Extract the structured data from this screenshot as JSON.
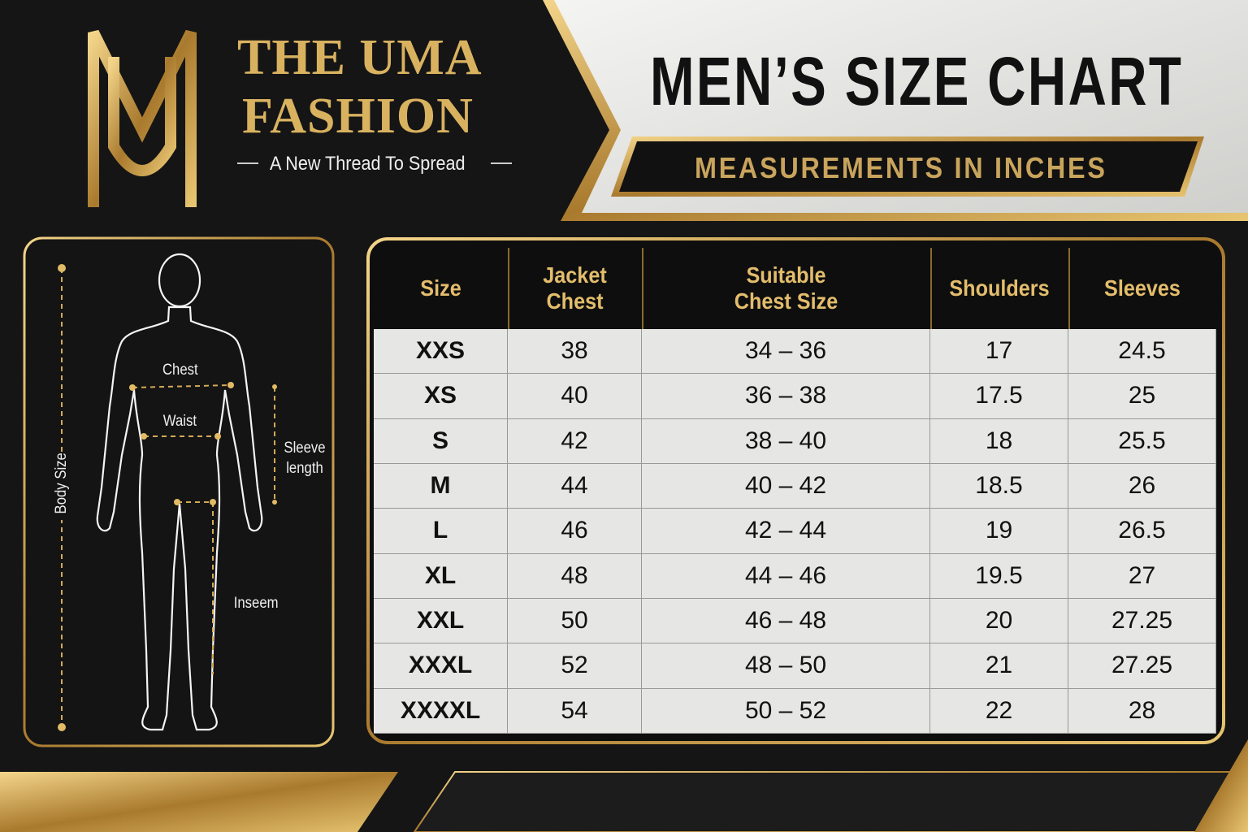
{
  "brand": {
    "name_lines": [
      "THE UMA",
      "FASHION"
    ],
    "tagline": "A New Thread To Spread"
  },
  "title": "MEN’S SIZE CHART",
  "subtitle": "MEASUREMENTS IN INCHES",
  "diagram": {
    "labels": {
      "body_size": "Body Size",
      "chest": "Chest",
      "waist": "Waist",
      "sleeve_length": "Sleeve length",
      "inseam": "Inseem"
    }
  },
  "table": {
    "columns": [
      "Size",
      "Jacket Chest",
      "Suitable Chest Size",
      "Shoulders",
      "Sleeves"
    ],
    "rows": [
      [
        "XXS",
        "38",
        "34 – 36",
        "17",
        "24.5"
      ],
      [
        "XS",
        "40",
        "36 – 38",
        "17.5",
        "25"
      ],
      [
        "S",
        "42",
        "38 – 40",
        "18",
        "25.5"
      ],
      [
        "M",
        "44",
        "40 – 42",
        "18.5",
        "26"
      ],
      [
        "L",
        "46",
        "42 – 44",
        "19",
        "26.5"
      ],
      [
        "XL",
        "48",
        "44 – 46",
        "19.5",
        "27"
      ],
      [
        "XXL",
        "50",
        "46 – 48",
        "20",
        "27.25"
      ],
      [
        "XXXL",
        "52",
        "48 – 50",
        "21",
        "27.25"
      ],
      [
        "XXXXL",
        "54",
        "50 – 52",
        "22",
        "28"
      ]
    ]
  }
}
